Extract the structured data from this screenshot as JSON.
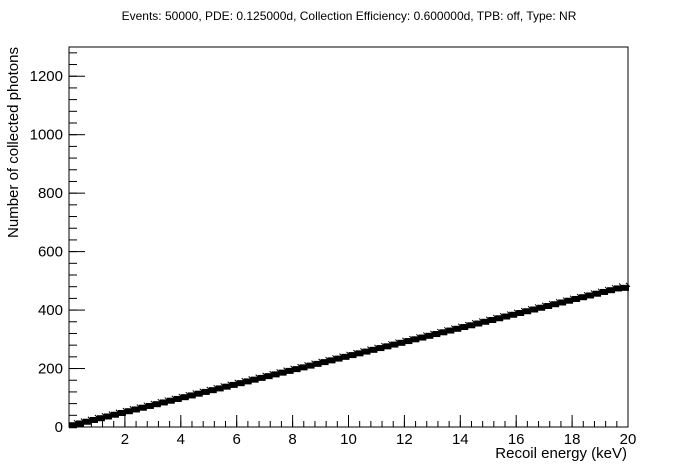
{
  "chart_data": {
    "type": "scatter",
    "title": "Events: 50000, PDE: 0.125000d, Collection Efficiency: 0.600000d, TPB: off, Type: NR",
    "xlabel": "Recoil energy (keV)",
    "ylabel": "Number of collected photons",
    "xlim": [
      0,
      20
    ],
    "ylim": [
      0,
      1300
    ],
    "x_ticks": [
      2,
      4,
      6,
      8,
      10,
      12,
      14,
      16,
      18,
      20
    ],
    "y_ticks": [
      0,
      200,
      400,
      600,
      800,
      1000,
      1200
    ],
    "grid": false,
    "legend": "none",
    "marker_color": "#000000",
    "series": [
      {
        "x": [
          0.25,
          0.5,
          0.75,
          1.0,
          1.25,
          1.5,
          1.75,
          2.0,
          2.25,
          2.5,
          2.75,
          3.0,
          3.25,
          3.5,
          3.75,
          4.0,
          4.25,
          4.5,
          4.75,
          5.0,
          5.25,
          5.5,
          5.75,
          6.0,
          6.25,
          6.5,
          6.75,
          7.0,
          7.25,
          7.5,
          7.75,
          8.0,
          8.25,
          8.5,
          8.75,
          9.0,
          9.25,
          9.5,
          9.75,
          10.0,
          10.25,
          10.5,
          10.75,
          11.0,
          11.25,
          11.5,
          11.75,
          12.0,
          12.25,
          12.5,
          12.75,
          13.0,
          13.25,
          13.5,
          13.75,
          14.0,
          14.25,
          14.5,
          14.75,
          15.0,
          15.25,
          15.5,
          15.75,
          16.0,
          16.25,
          16.5,
          16.75,
          17.0,
          17.25,
          17.5,
          17.75,
          18.0,
          18.25,
          18.5,
          18.75,
          19.0,
          19.25,
          19.5,
          19.75,
          20.0
        ],
        "y": [
          6,
          12,
          18,
          24,
          30,
          36,
          42,
          48,
          54,
          60,
          66,
          72,
          78,
          84,
          90,
          96,
          102,
          108,
          114,
          120,
          126,
          132,
          138,
          144,
          150,
          156,
          162,
          168,
          174,
          180,
          186,
          192,
          198,
          204,
          210,
          216,
          222,
          228,
          234,
          240,
          246,
          252,
          258,
          264,
          270,
          276,
          282,
          288,
          294,
          300,
          306,
          312,
          318,
          324,
          330,
          336,
          342,
          348,
          354,
          360,
          366,
          372,
          378,
          384,
          390,
          396,
          402,
          408,
          414,
          420,
          426,
          432,
          438,
          444,
          450,
          456,
          462,
          468,
          474,
          476
        ]
      }
    ]
  }
}
